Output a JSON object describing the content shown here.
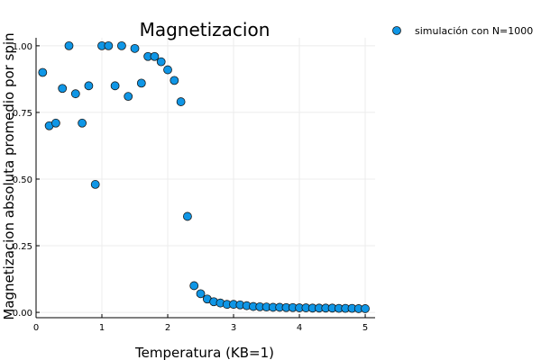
{
  "chart_data": {
    "type": "scatter",
    "title": "Magnetizacion",
    "xlabel": "Temperatura (KB=1)",
    "ylabel": "Magnetizacion absoluta promedio por spin",
    "xlim": [
      0,
      5.15
    ],
    "ylim": [
      -0.02,
      1.03
    ],
    "xticks": [
      0,
      1,
      2,
      3,
      4,
      5
    ],
    "xtick_labels": [
      "0",
      "1",
      "2",
      "3",
      "4",
      "5"
    ],
    "yticks": [
      0.0,
      0.25,
      0.5,
      0.75,
      1.0
    ],
    "ytick_labels": [
      "0.00",
      "0.25",
      "0.50",
      "0.75",
      "1.00"
    ],
    "grid": true,
    "legend": "outside-top-right",
    "colors": {
      "marker": "#0f96e6",
      "marker_edge": "#1a1a1a",
      "grid": "#ececec"
    },
    "series": [
      {
        "name": "simulación con N=1000",
        "x": [
          0.1,
          0.2,
          0.3,
          0.4,
          0.5,
          0.6,
          0.7,
          0.8,
          0.9,
          1.0,
          1.1,
          1.2,
          1.3,
          1.4,
          1.5,
          1.6,
          1.7,
          1.8,
          1.9,
          2.0,
          2.1,
          2.2,
          2.3,
          2.4,
          2.5,
          2.6,
          2.7,
          2.8,
          2.9,
          3.0,
          3.1,
          3.2,
          3.3,
          3.4,
          3.5,
          3.6,
          3.7,
          3.8,
          3.9,
          4.0,
          4.1,
          4.2,
          4.3,
          4.4,
          4.5,
          4.6,
          4.7,
          4.8,
          4.9,
          5.0
        ],
        "y": [
          0.9,
          0.7,
          0.71,
          0.84,
          1.0,
          0.82,
          0.71,
          0.85,
          0.48,
          1.0,
          1.0,
          0.85,
          1.0,
          0.81,
          0.99,
          0.86,
          0.96,
          0.96,
          0.94,
          0.91,
          0.87,
          0.79,
          0.36,
          0.1,
          0.07,
          0.05,
          0.04,
          0.035,
          0.03,
          0.03,
          0.028,
          0.025,
          0.022,
          0.021,
          0.02,
          0.019,
          0.019,
          0.018,
          0.018,
          0.017,
          0.017,
          0.016,
          0.016,
          0.016,
          0.016,
          0.015,
          0.015,
          0.015,
          0.014,
          0.014
        ]
      }
    ]
  }
}
